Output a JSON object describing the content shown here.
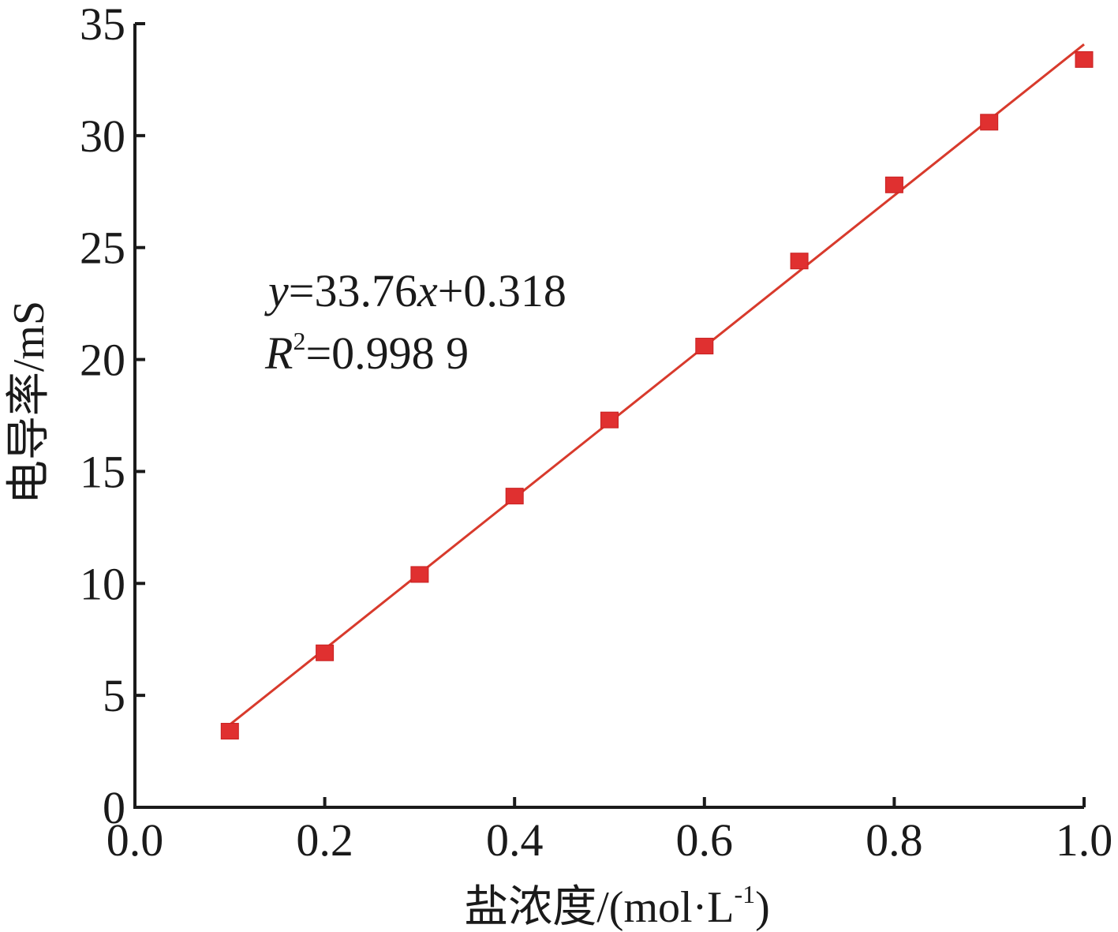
{
  "chart_data": {
    "type": "scatter",
    "title": "",
    "xlabel_main": "盐浓度/(mol·L",
    "xlabel_sup": "-1",
    "xlabel_close": ")",
    "ylabel": "电导率/mS",
    "xlim": [
      0.0,
      1.0
    ],
    "ylim": [
      0,
      35
    ],
    "x_ticks": [
      "0.0",
      "0.2",
      "0.4",
      "0.6",
      "0.8",
      "1.0"
    ],
    "y_ticks": [
      "0",
      "5",
      "10",
      "15",
      "20",
      "25",
      "30",
      "35"
    ],
    "x": [
      0.1,
      0.2,
      0.3,
      0.4,
      0.5,
      0.6,
      0.7,
      0.8,
      0.9,
      1.0
    ],
    "y": [
      3.4,
      6.9,
      10.4,
      13.9,
      17.3,
      20.6,
      24.4,
      27.8,
      30.6,
      33.4
    ],
    "fit": {
      "slope": 33.76,
      "intercept": 0.318,
      "x_range": [
        0.1,
        1.0
      ]
    },
    "equation": {
      "y": "y",
      "rhs1": "=33.76",
      "x": "x",
      "rhs2": "+0.318"
    },
    "r2": {
      "R": "R",
      "sup": "2",
      "value": "=0.998 9"
    },
    "grid": false,
    "colors": {
      "series": "#e03030",
      "fit": "#d83a2c",
      "axis": "#1a1a1a"
    }
  }
}
